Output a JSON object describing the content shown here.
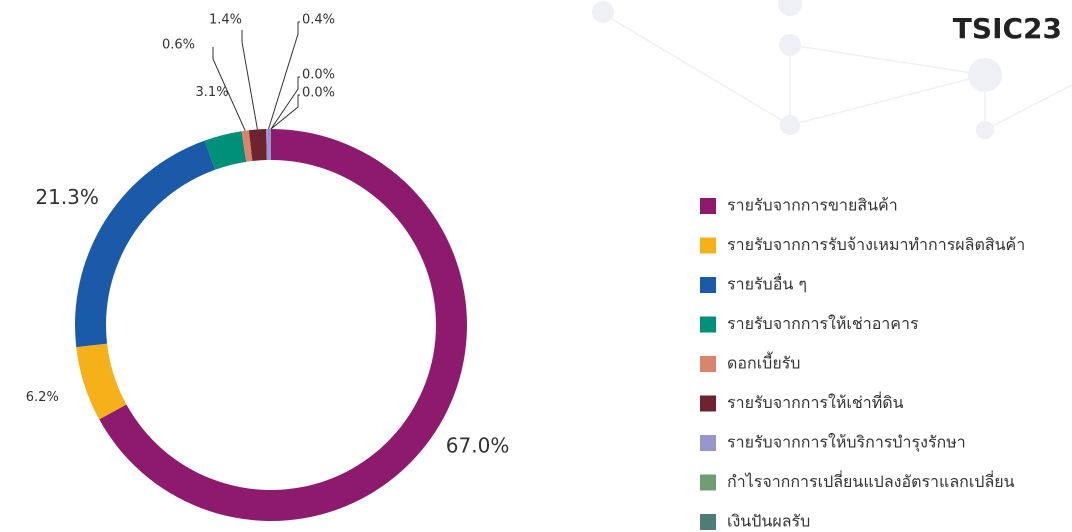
{
  "chart_data": {
    "type": "donut",
    "title": "TSIC23",
    "categories": [
      "รายรับจากการขายสินค้า",
      "รายรับจากการรับจ้างเหมาทำการผลิตสินค้า",
      "รายรับอื่น ๆ",
      "รายรับจากการให้เช่าอาคาร",
      "ดอกเบี้ยรับ",
      "รายรับจากการให้เช่าที่ดิน",
      "รายรับจากการให้บริการบำรุงรักษา",
      "กำไรจากการเปลี่ยนแปลงอัตราแลกเปลี่ยน",
      "เงินปันผลรับ"
    ],
    "values": [
      67.0,
      6.2,
      21.3,
      3.1,
      0.6,
      1.4,
      0.4,
      0.0,
      0.0
    ],
    "value_labels": [
      "67.0%",
      "6.2%",
      "21.3%",
      "3.1%",
      "0.6%",
      "1.4%",
      "0.4%",
      "0.0%",
      "0.0%"
    ],
    "colors": [
      "#8e1a6e",
      "#f5b01a",
      "#1b5aa8",
      "#00907a",
      "#d9846c",
      "#6e2330",
      "#9797cc",
      "#6f9e73",
      "#4e7d78"
    ]
  }
}
